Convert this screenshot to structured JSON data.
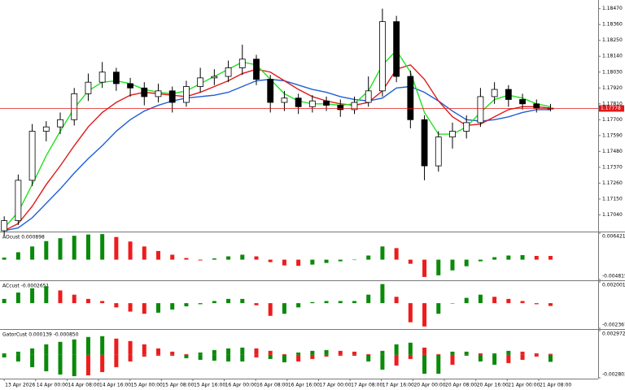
{
  "chart_data": [
    {
      "type": "candlestick",
      "x": [
        0,
        1,
        2,
        3,
        4,
        5,
        6,
        7,
        8,
        9,
        10,
        11,
        12,
        13,
        14,
        15,
        16,
        17,
        18,
        19,
        20,
        21,
        22,
        23,
        24,
        25,
        26,
        27,
        28,
        29,
        30,
        31,
        32,
        33,
        34,
        35,
        36,
        37,
        38,
        39
      ],
      "xlim": [
        -0.3,
        42.4
      ],
      "open": [
        1.1693,
        1.17,
        1.1728,
        1.1762,
        1.1765,
        1.177,
        1.1788,
        1.1796,
        1.1803,
        1.1795,
        1.1792,
        1.1786,
        1.179,
        1.1782,
        1.1793,
        1.1799,
        1.18,
        1.1806,
        1.1812,
        1.1798,
        1.1782,
        1.1785,
        1.1779,
        1.1783,
        1.178,
        1.1777,
        1.1782,
        1.179,
        1.1838,
        1.18,
        1.177,
        1.1738,
        1.1758,
        1.1762,
        1.1768,
        1.1786,
        1.1791,
        1.1784,
        1.1781,
        1.1778
      ],
      "high": [
        1.1703,
        1.1732,
        1.1767,
        1.1769,
        1.1775,
        1.1792,
        1.1802,
        1.181,
        1.1806,
        1.1799,
        1.1796,
        1.1795,
        1.1793,
        1.1797,
        1.1806,
        1.1805,
        1.1811,
        1.1822,
        1.1815,
        1.1801,
        1.179,
        1.1788,
        1.1787,
        1.1786,
        1.1784,
        1.1786,
        1.18,
        1.1847,
        1.1842,
        1.1804,
        1.1773,
        1.1762,
        1.1768,
        1.1773,
        1.1792,
        1.1796,
        1.1794,
        1.1788,
        1.1784,
        1.1781
      ],
      "low": [
        1.169,
        1.1697,
        1.1724,
        1.1755,
        1.176,
        1.1766,
        1.1783,
        1.1792,
        1.179,
        1.1786,
        1.178,
        1.1782,
        1.1775,
        1.1779,
        1.1789,
        1.1794,
        1.1796,
        1.1801,
        1.1794,
        1.1775,
        1.1776,
        1.1774,
        1.1775,
        1.1776,
        1.1772,
        1.1774,
        1.1779,
        1.1786,
        1.1796,
        1.1764,
        1.1728,
        1.1734,
        1.175,
        1.1757,
        1.1765,
        1.1781,
        1.1779,
        1.1777,
        1.1775,
        1.17758
      ],
      "close": [
        1.17,
        1.1728,
        1.1762,
        1.1765,
        1.177,
        1.1788,
        1.1796,
        1.1803,
        1.1795,
        1.1792,
        1.1786,
        1.179,
        1.1782,
        1.1793,
        1.1799,
        1.18,
        1.1806,
        1.1812,
        1.1798,
        1.1782,
        1.1785,
        1.1779,
        1.1783,
        1.178,
        1.1777,
        1.1782,
        1.179,
        1.1838,
        1.18,
        1.177,
        1.1738,
        1.1758,
        1.1762,
        1.1768,
        1.1786,
        1.1791,
        1.1784,
        1.1781,
        1.1778,
        1.17778
      ],
      "up_color": "#ffffff",
      "down_color": "#000000",
      "wick_color": "#000000",
      "series": [
        {
          "color": "#1f5fd6",
          "values": [
            1.1693,
            1.1695,
            1.1702,
            1.1712,
            1.1722,
            1.1733,
            1.1743,
            1.1752,
            1.1762,
            1.177,
            1.1776,
            1.178,
            1.1783,
            1.1785,
            1.1786,
            1.1787,
            1.1789,
            1.1793,
            1.1797,
            1.1798,
            1.1797,
            1.1794,
            1.1791,
            1.1789,
            1.1786,
            1.1784,
            1.1783,
            1.1785,
            1.1792,
            1.1793,
            1.1789,
            1.1783,
            1.1776,
            1.177,
            1.1769,
            1.177,
            1.1772,
            1.1775,
            1.1777,
            1.1777
          ]
        },
        {
          "color": "#e01818",
          "values": [
            1.1693,
            1.1698,
            1.171,
            1.1725,
            1.1738,
            1.1752,
            1.1765,
            1.1775,
            1.1782,
            1.1787,
            1.1789,
            1.1788,
            1.1787,
            1.1786,
            1.1789,
            1.1793,
            1.1797,
            1.1802,
            1.1805,
            1.1803,
            1.1797,
            1.1791,
            1.1786,
            1.1783,
            1.1781,
            1.178,
            1.1782,
            1.179,
            1.1805,
            1.1808,
            1.1798,
            1.1783,
            1.1772,
            1.1766,
            1.1767,
            1.1772,
            1.1777,
            1.1779,
            1.1779,
            1.1778
          ]
        },
        {
          "color": "#22e022",
          "values": [
            1.1695,
            1.1706,
            1.1725,
            1.1745,
            1.1762,
            1.1778,
            1.179,
            1.1796,
            1.1797,
            1.1795,
            1.1791,
            1.1789,
            1.1788,
            1.179,
            1.1795,
            1.18,
            1.1805,
            1.181,
            1.1808,
            1.1798,
            1.1788,
            1.1783,
            1.1781,
            1.1781,
            1.178,
            1.1781,
            1.179,
            1.1808,
            1.1818,
            1.1803,
            1.1775,
            1.176,
            1.176,
            1.1765,
            1.1775,
            1.1784,
            1.1787,
            1.1785,
            1.1781,
            1.1779
          ]
        }
      ],
      "last_price": 1.17778,
      "last_price_color": "#e01818",
      "ylim": [
        1.1693,
        1.1853
      ],
      "yticks": [
        {
          "value": 1.1847,
          "label": "1.18470"
        },
        {
          "value": 1.1836,
          "label": "1.18360"
        },
        {
          "value": 1.1825,
          "label": "1.18250"
        },
        {
          "value": 1.1814,
          "label": "1.18140"
        },
        {
          "value": 1.1803,
          "label": "1.18030"
        },
        {
          "value": 1.1792,
          "label": "1.17920"
        },
        {
          "value": 1.1781,
          "label": "1.17810"
        },
        {
          "value": 1.177,
          "label": "1.17700"
        },
        {
          "value": 1.1759,
          "label": "1.17590"
        },
        {
          "value": 1.1748,
          "label": "1.17480"
        },
        {
          "value": 1.1737,
          "label": "1.17370"
        },
        {
          "value": 1.1726,
          "label": "1.17260"
        },
        {
          "value": 1.1715,
          "label": "1.17150"
        },
        {
          "value": 1.1704,
          "label": "1.17040"
        }
      ]
    },
    {
      "type": "bar",
      "title": "AOcust 0.000898",
      "up_color": "#0a8a0a",
      "down_color": "#ee1c1c",
      "values": [
        0.0005,
        0.0018,
        0.0032,
        0.0045,
        0.0052,
        0.0058,
        0.0061,
        0.0062,
        0.0055,
        0.0044,
        0.0032,
        0.0021,
        0.0012,
        0.0004,
        -0.0002,
        0.0003,
        0.0008,
        0.0012,
        0.0008,
        -0.0006,
        -0.0014,
        -0.0015,
        -0.0012,
        -0.0008,
        -0.0004,
        -0.0001,
        0.001,
        0.0032,
        0.0028,
        -0.001,
        -0.0042,
        -0.0038,
        -0.0026,
        -0.0016,
        -0.0004,
        0.0006,
        0.001,
        0.0011,
        0.0009,
        0.000898
      ],
      "ylim": [
        -0.004815,
        0.006421
      ],
      "yticks": [
        0.006421,
        -0.004815
      ]
    },
    {
      "type": "bar",
      "title": "ACcust -0.0002651",
      "up_color": "#0a8a0a",
      "down_color": "#ee1c1c",
      "values": [
        0.0004,
        0.001,
        0.0014,
        0.0016,
        0.0012,
        0.0008,
        0.0004,
        0.0002,
        -0.0004,
        -0.0008,
        -0.001,
        -0.0009,
        -0.0006,
        -0.0003,
        -0.0001,
        0.0002,
        0.0004,
        0.0004,
        -0.0002,
        -0.0012,
        -0.001,
        -0.0004,
        0.0001,
        0.0002,
        0.0002,
        0.0002,
        0.0008,
        0.0018,
        0.0006,
        -0.0018,
        -0.0022,
        -0.001,
        0.0,
        0.0005,
        0.0008,
        0.0006,
        0.0004,
        0.0002,
        -0.0001,
        -0.0002651
      ],
      "ylim": [
        -0.0023672,
        0.0020013
      ],
      "yticks": [
        0.0020013,
        -0.0023672
      ]
    },
    {
      "type": "bar",
      "title": "GatorCust 0.000139 -0.000850",
      "up_color": "#0a8a0a",
      "down_color": "#ee1c1c",
      "series": [
        {
          "values": [
            0.0002,
            0.0004,
            0.0008,
            0.0013,
            0.0016,
            0.0019,
            0.0022,
            0.0023,
            0.002,
            0.0017,
            0.0013,
            0.0008,
            0.0004,
            0.0001,
            0.0003,
            0.0006,
            0.0008,
            0.0009,
            0.0008,
            0.0005,
            0.0001,
            0.0003,
            0.0005,
            0.0006,
            0.0005,
            0.0004,
            0.0001,
            0.0005,
            0.0013,
            0.0015,
            0.0009,
            0.0001,
            0.0004,
            0.0004,
            0.0002,
            0.0002,
            0.0005,
            0.0004,
            0.0002,
            0.000139
          ]
        },
        {
          "values": [
            -0.0003,
            -0.0008,
            -0.0015,
            -0.002,
            -0.0024,
            -0.0026,
            -0.0025,
            -0.0021,
            -0.0015,
            -0.0008,
            -0.0002,
            -0.0001,
            -0.0001,
            -0.0004,
            -0.0006,
            -0.0007,
            -0.0008,
            -0.0008,
            -0.0003,
            -0.0005,
            -0.0009,
            -0.0008,
            -0.0005,
            -0.0002,
            -0.0001,
            -0.0001,
            -0.0008,
            -0.0018,
            -0.0013,
            -0.0005,
            -0.0023,
            -0.0023,
            -0.0012,
            -0.0001,
            -0.0008,
            -0.0012,
            -0.001,
            -0.0006,
            -0.0002,
            -0.00085
          ]
        }
      ],
      "ylim": [
        -0.002803,
        0.002972
      ],
      "yticks": [
        0.002972,
        -0.002803
      ],
      "xticks": [
        {
          "value": 0,
          "label": "13 Apr 2026"
        },
        {
          "value": 2.24,
          "label": "14 Apr 00:00"
        },
        {
          "value": 4.49,
          "label": "14 Apr 08:00"
        },
        {
          "value": 6.73,
          "label": "14 Apr 16:00"
        },
        {
          "value": 8.98,
          "label": "15 Apr 00:00"
        },
        {
          "value": 11.22,
          "label": "15 Apr 08:00"
        },
        {
          "value": 13.47,
          "label": "15 Apr 16:00"
        },
        {
          "value": 15.71,
          "label": "16 Apr 00:00"
        },
        {
          "value": 17.95,
          "label": "16 Apr 08:00"
        },
        {
          "value": 20.2,
          "label": "16 Apr 16:00"
        },
        {
          "value": 22.44,
          "label": "17 Apr 00:00"
        },
        {
          "value": 24.69,
          "label": "17 Apr 08:00"
        },
        {
          "value": 26.93,
          "label": "17 Apr 16:00"
        },
        {
          "value": 29.18,
          "label": "20 Apr 00:00"
        },
        {
          "value": 31.42,
          "label": "20 Apr 08:00"
        },
        {
          "value": 33.67,
          "label": "20 Apr 16:00"
        },
        {
          "value": 35.91,
          "label": "21 Apr 00:00"
        },
        {
          "value": 38.16,
          "label": "21 Apr 08:00"
        }
      ]
    }
  ]
}
